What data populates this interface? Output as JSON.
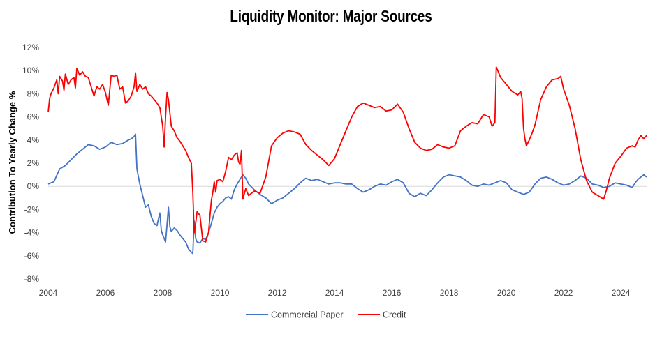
{
  "chart_data": {
    "type": "line",
    "title": "Liquidity Monitor: Major Sources",
    "xlabel": "",
    "ylabel": "Contribution To Yearly Change %",
    "xlim": [
      2004,
      2024.9
    ],
    "ylim": [
      -8,
      12
    ],
    "x_ticks": [
      "2004",
      "2006",
      "2008",
      "2010",
      "2012",
      "2014",
      "2016",
      "2018",
      "2020",
      "2022",
      "2024"
    ],
    "y_ticks": [
      "12%",
      "10%",
      "8%",
      "6%",
      "4%",
      "2%",
      "0%",
      "-2%",
      "-4%",
      "-6%",
      "-8%"
    ],
    "legend_position": "bottom",
    "series": [
      {
        "name": "Commercial Paper",
        "color": "#4472C4",
        "points": [
          [
            2004.0,
            0.2
          ],
          [
            2004.2,
            0.4
          ],
          [
            2004.4,
            1.5
          ],
          [
            2004.6,
            1.8
          ],
          [
            2004.8,
            2.3
          ],
          [
            2005.0,
            2.8
          ],
          [
            2005.2,
            3.2
          ],
          [
            2005.4,
            3.6
          ],
          [
            2005.6,
            3.5
          ],
          [
            2005.8,
            3.2
          ],
          [
            2006.0,
            3.4
          ],
          [
            2006.2,
            3.8
          ],
          [
            2006.4,
            3.6
          ],
          [
            2006.6,
            3.7
          ],
          [
            2006.8,
            4.0
          ],
          [
            2006.9,
            4.1
          ],
          [
            2007.0,
            4.3
          ],
          [
            2007.05,
            4.5
          ],
          [
            2007.1,
            1.5
          ],
          [
            2007.2,
            0.2
          ],
          [
            2007.3,
            -0.8
          ],
          [
            2007.4,
            -1.8
          ],
          [
            2007.5,
            -1.6
          ],
          [
            2007.6,
            -2.6
          ],
          [
            2007.7,
            -3.2
          ],
          [
            2007.8,
            -3.4
          ],
          [
            2007.9,
            -2.3
          ],
          [
            2007.95,
            -3.8
          ],
          [
            2008.0,
            -4.2
          ],
          [
            2008.1,
            -4.8
          ],
          [
            2008.15,
            -3.3
          ],
          [
            2008.2,
            -1.8
          ],
          [
            2008.25,
            -3.5
          ],
          [
            2008.3,
            -3.9
          ],
          [
            2008.4,
            -3.6
          ],
          [
            2008.5,
            -3.8
          ],
          [
            2008.6,
            -4.2
          ],
          [
            2008.7,
            -4.5
          ],
          [
            2008.8,
            -4.8
          ],
          [
            2008.9,
            -5.4
          ],
          [
            2009.0,
            -5.7
          ],
          [
            2009.05,
            -5.8
          ],
          [
            2009.1,
            -3.0
          ],
          [
            2009.15,
            -4.5
          ],
          [
            2009.2,
            -4.8
          ],
          [
            2009.3,
            -4.9
          ],
          [
            2009.4,
            -4.5
          ],
          [
            2009.5,
            -4.6
          ],
          [
            2009.6,
            -4.0
          ],
          [
            2009.7,
            -3.2
          ],
          [
            2009.8,
            -2.3
          ],
          [
            2009.9,
            -1.8
          ],
          [
            2010.0,
            -1.5
          ],
          [
            2010.1,
            -1.3
          ],
          [
            2010.2,
            -1.0
          ],
          [
            2010.3,
            -0.9
          ],
          [
            2010.4,
            -1.1
          ],
          [
            2010.5,
            -0.3
          ],
          [
            2010.6,
            0.2
          ],
          [
            2010.7,
            0.6
          ],
          [
            2010.8,
            1.0
          ],
          [
            2010.9,
            0.7
          ],
          [
            2011.0,
            0.2
          ],
          [
            2011.2,
            -0.3
          ],
          [
            2011.4,
            -0.7
          ],
          [
            2011.6,
            -1.0
          ],
          [
            2011.8,
            -1.5
          ],
          [
            2012.0,
            -1.2
          ],
          [
            2012.2,
            -1.0
          ],
          [
            2012.4,
            -0.6
          ],
          [
            2012.6,
            -0.2
          ],
          [
            2012.8,
            0.3
          ],
          [
            2013.0,
            0.7
          ],
          [
            2013.2,
            0.5
          ],
          [
            2013.4,
            0.6
          ],
          [
            2013.6,
            0.4
          ],
          [
            2013.8,
            0.2
          ],
          [
            2014.0,
            0.3
          ],
          [
            2014.2,
            0.3
          ],
          [
            2014.4,
            0.2
          ],
          [
            2014.6,
            0.2
          ],
          [
            2014.8,
            -0.2
          ],
          [
            2015.0,
            -0.5
          ],
          [
            2015.2,
            -0.3
          ],
          [
            2015.4,
            0.0
          ],
          [
            2015.6,
            0.2
          ],
          [
            2015.8,
            0.1
          ],
          [
            2016.0,
            0.4
          ],
          [
            2016.2,
            0.6
          ],
          [
            2016.4,
            0.3
          ],
          [
            2016.6,
            -0.6
          ],
          [
            2016.8,
            -0.9
          ],
          [
            2017.0,
            -0.6
          ],
          [
            2017.2,
            -0.8
          ],
          [
            2017.4,
            -0.3
          ],
          [
            2017.6,
            0.3
          ],
          [
            2017.8,
            0.8
          ],
          [
            2018.0,
            1.0
          ],
          [
            2018.2,
            0.9
          ],
          [
            2018.4,
            0.8
          ],
          [
            2018.6,
            0.5
          ],
          [
            2018.8,
            0.1
          ],
          [
            2019.0,
            0.0
          ],
          [
            2019.2,
            0.2
          ],
          [
            2019.4,
            0.1
          ],
          [
            2019.6,
            0.3
          ],
          [
            2019.8,
            0.5
          ],
          [
            2020.0,
            0.3
          ],
          [
            2020.2,
            -0.3
          ],
          [
            2020.4,
            -0.5
          ],
          [
            2020.6,
            -0.7
          ],
          [
            2020.8,
            -0.5
          ],
          [
            2021.0,
            0.2
          ],
          [
            2021.2,
            0.7
          ],
          [
            2021.4,
            0.8
          ],
          [
            2021.6,
            0.6
          ],
          [
            2021.8,
            0.3
          ],
          [
            2022.0,
            0.1
          ],
          [
            2022.2,
            0.2
          ],
          [
            2022.4,
            0.5
          ],
          [
            2022.6,
            0.9
          ],
          [
            2022.8,
            0.7
          ],
          [
            2023.0,
            0.2
          ],
          [
            2023.2,
            0.1
          ],
          [
            2023.4,
            -0.1
          ],
          [
            2023.6,
            0.0
          ],
          [
            2023.8,
            0.3
          ],
          [
            2024.0,
            0.2
          ],
          [
            2024.2,
            0.1
          ],
          [
            2024.4,
            -0.1
          ],
          [
            2024.5,
            0.3
          ],
          [
            2024.6,
            0.6
          ],
          [
            2024.7,
            0.8
          ],
          [
            2024.8,
            1.0
          ],
          [
            2024.9,
            0.8
          ]
        ]
      },
      {
        "name": "Credit",
        "color": "#FF0000",
        "points": [
          [
            2004.0,
            6.4
          ],
          [
            2004.05,
            7.6
          ],
          [
            2004.1,
            8.0
          ],
          [
            2004.2,
            8.5
          ],
          [
            2004.3,
            9.2
          ],
          [
            2004.35,
            8.0
          ],
          [
            2004.4,
            9.5
          ],
          [
            2004.5,
            9.1
          ],
          [
            2004.55,
            8.3
          ],
          [
            2004.6,
            9.7
          ],
          [
            2004.7,
            8.8
          ],
          [
            2004.8,
            9.2
          ],
          [
            2004.9,
            9.4
          ],
          [
            2004.95,
            8.5
          ],
          [
            2005.0,
            10.2
          ],
          [
            2005.1,
            9.6
          ],
          [
            2005.2,
            9.9
          ],
          [
            2005.3,
            9.5
          ],
          [
            2005.4,
            9.4
          ],
          [
            2005.5,
            8.6
          ],
          [
            2005.6,
            7.8
          ],
          [
            2005.7,
            8.6
          ],
          [
            2005.8,
            8.4
          ],
          [
            2005.9,
            8.8
          ],
          [
            2006.0,
            8.1
          ],
          [
            2006.1,
            7.0
          ],
          [
            2006.2,
            9.6
          ],
          [
            2006.3,
            9.5
          ],
          [
            2006.4,
            9.6
          ],
          [
            2006.5,
            8.4
          ],
          [
            2006.6,
            8.6
          ],
          [
            2006.7,
            7.2
          ],
          [
            2006.8,
            7.4
          ],
          [
            2006.9,
            7.8
          ],
          [
            2007.0,
            8.6
          ],
          [
            2007.05,
            9.8
          ],
          [
            2007.1,
            8.2
          ],
          [
            2007.2,
            8.8
          ],
          [
            2007.3,
            8.4
          ],
          [
            2007.4,
            8.6
          ],
          [
            2007.5,
            8.0
          ],
          [
            2007.6,
            7.8
          ],
          [
            2007.7,
            7.5
          ],
          [
            2007.8,
            7.2
          ],
          [
            2007.9,
            6.8
          ],
          [
            2008.0,
            5.2
          ],
          [
            2008.05,
            3.4
          ],
          [
            2008.1,
            6.0
          ],
          [
            2008.15,
            8.1
          ],
          [
            2008.2,
            7.5
          ],
          [
            2008.3,
            5.2
          ],
          [
            2008.4,
            4.8
          ],
          [
            2008.5,
            4.2
          ],
          [
            2008.6,
            3.9
          ],
          [
            2008.7,
            3.5
          ],
          [
            2008.8,
            3.1
          ],
          [
            2008.9,
            2.5
          ],
          [
            2009.0,
            2.0
          ],
          [
            2009.05,
            -0.5
          ],
          [
            2009.1,
            -4.0
          ],
          [
            2009.15,
            -3.2
          ],
          [
            2009.2,
            -2.2
          ],
          [
            2009.3,
            -2.5
          ],
          [
            2009.4,
            -4.7
          ],
          [
            2009.5,
            -4.8
          ],
          [
            2009.6,
            -4.0
          ],
          [
            2009.7,
            -1.2
          ],
          [
            2009.75,
            -0.5
          ],
          [
            2009.8,
            0.4
          ],
          [
            2009.85,
            -0.5
          ],
          [
            2009.9,
            0.5
          ],
          [
            2010.0,
            0.6
          ],
          [
            2010.1,
            0.4
          ],
          [
            2010.2,
            1.3
          ],
          [
            2010.3,
            2.5
          ],
          [
            2010.4,
            2.3
          ],
          [
            2010.5,
            2.7
          ],
          [
            2010.6,
            2.9
          ],
          [
            2010.65,
            2.1
          ],
          [
            2010.7,
            1.9
          ],
          [
            2010.75,
            3.1
          ],
          [
            2010.8,
            -1.1
          ],
          [
            2010.9,
            -0.2
          ],
          [
            2011.0,
            -0.8
          ],
          [
            2011.2,
            -0.4
          ],
          [
            2011.4,
            -0.6
          ],
          [
            2011.6,
            0.8
          ],
          [
            2011.8,
            3.5
          ],
          [
            2012.0,
            4.2
          ],
          [
            2012.2,
            4.6
          ],
          [
            2012.4,
            4.8
          ],
          [
            2012.6,
            4.7
          ],
          [
            2012.8,
            4.5
          ],
          [
            2013.0,
            3.6
          ],
          [
            2013.2,
            3.1
          ],
          [
            2013.4,
            2.7
          ],
          [
            2013.6,
            2.3
          ],
          [
            2013.8,
            1.8
          ],
          [
            2014.0,
            2.4
          ],
          [
            2014.2,
            3.6
          ],
          [
            2014.4,
            4.8
          ],
          [
            2014.6,
            6.0
          ],
          [
            2014.8,
            6.9
          ],
          [
            2015.0,
            7.2
          ],
          [
            2015.2,
            7.0
          ],
          [
            2015.4,
            6.8
          ],
          [
            2015.6,
            6.9
          ],
          [
            2015.8,
            6.5
          ],
          [
            2016.0,
            6.6
          ],
          [
            2016.2,
            7.1
          ],
          [
            2016.4,
            6.4
          ],
          [
            2016.6,
            5.0
          ],
          [
            2016.8,
            3.8
          ],
          [
            2017.0,
            3.3
          ],
          [
            2017.2,
            3.1
          ],
          [
            2017.4,
            3.2
          ],
          [
            2017.6,
            3.6
          ],
          [
            2017.8,
            3.4
          ],
          [
            2018.0,
            3.3
          ],
          [
            2018.2,
            3.5
          ],
          [
            2018.4,
            4.8
          ],
          [
            2018.6,
            5.2
          ],
          [
            2018.8,
            5.5
          ],
          [
            2019.0,
            5.4
          ],
          [
            2019.2,
            6.2
          ],
          [
            2019.4,
            6.0
          ],
          [
            2019.5,
            5.2
          ],
          [
            2019.6,
            5.5
          ],
          [
            2019.65,
            10.3
          ],
          [
            2019.7,
            10.0
          ],
          [
            2019.8,
            9.4
          ],
          [
            2020.0,
            8.8
          ],
          [
            2020.2,
            8.2
          ],
          [
            2020.4,
            7.9
          ],
          [
            2020.5,
            8.2
          ],
          [
            2020.55,
            7.6
          ],
          [
            2020.6,
            5.0
          ],
          [
            2020.65,
            4.1
          ],
          [
            2020.7,
            3.5
          ],
          [
            2020.8,
            4.0
          ],
          [
            2020.9,
            4.6
          ],
          [
            2021.0,
            5.3
          ],
          [
            2021.2,
            7.5
          ],
          [
            2021.4,
            8.6
          ],
          [
            2021.6,
            9.2
          ],
          [
            2021.8,
            9.3
          ],
          [
            2021.9,
            9.5
          ],
          [
            2022.0,
            8.4
          ],
          [
            2022.2,
            7.0
          ],
          [
            2022.4,
            5.0
          ],
          [
            2022.6,
            2.3
          ],
          [
            2022.8,
            0.5
          ],
          [
            2023.0,
            -0.5
          ],
          [
            2023.2,
            -0.8
          ],
          [
            2023.4,
            -1.1
          ],
          [
            2023.5,
            -0.3
          ],
          [
            2023.6,
            0.7
          ],
          [
            2023.8,
            2.0
          ],
          [
            2024.0,
            2.6
          ],
          [
            2024.2,
            3.3
          ],
          [
            2024.4,
            3.5
          ],
          [
            2024.5,
            3.4
          ],
          [
            2024.6,
            4.0
          ],
          [
            2024.7,
            4.4
          ],
          [
            2024.8,
            4.1
          ],
          [
            2024.9,
            4.4
          ]
        ]
      }
    ]
  }
}
